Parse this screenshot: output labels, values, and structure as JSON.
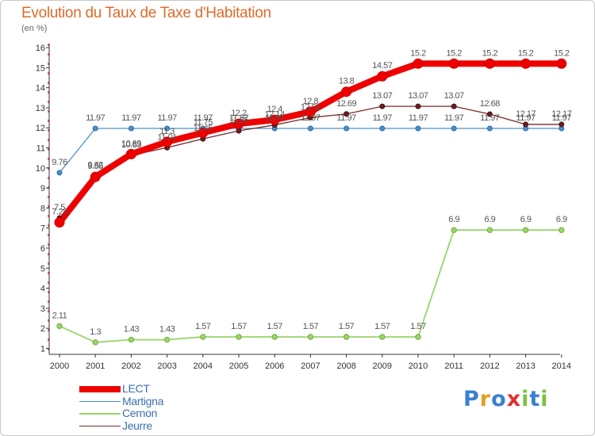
{
  "chart_data": {
    "type": "line",
    "title": "Evolution du Taux de Taxe d'Habitation",
    "subtitle": "(en %)",
    "x": [
      "2000",
      "2001",
      "2002",
      "2003",
      "2004",
      "2005",
      "2006",
      "2007",
      "2008",
      "2009",
      "2010",
      "2011",
      "2012",
      "2013",
      "2014"
    ],
    "yticks": [
      "1",
      "2",
      "3",
      "4",
      "5",
      "6",
      "7",
      "8",
      "9",
      "10",
      "11",
      "12",
      "13",
      "14",
      "15",
      "16"
    ],
    "ylim": [
      0.7,
      16.2
    ],
    "grid": false,
    "legend_position": "bottom-left",
    "series": [
      {
        "name": "LECT",
        "color": "#ee0000",
        "values": [
          7.28,
          9.55,
          10.69,
          11.3,
          11.75,
          12.2,
          12.4,
          12.8,
          13.8,
          14.57,
          15.2,
          15.2,
          15.2,
          15.2,
          15.2
        ],
        "labels": [
          "7.28",
          "9.55",
          "10.69",
          "11.3",
          "11.75",
          "12.2",
          "12.4",
          "12.8",
          "13.8",
          "14.57",
          "15.2",
          "15.2",
          "15.2",
          "15.2",
          "15.2"
        ]
      },
      {
        "name": "Martigna",
        "color": "#4a90cc",
        "values": [
          9.76,
          11.97,
          11.97,
          11.97,
          11.97,
          11.97,
          11.97,
          11.97,
          11.97,
          11.97,
          11.97,
          11.97,
          11.97,
          11.97,
          11.97
        ],
        "labels": [
          "9.76",
          "11.97",
          "11.97",
          "11.97",
          "11.97",
          "11.97",
          "11.97",
          "11.97",
          "11.97",
          "11.97",
          "11.97",
          "11.97",
          "11.97",
          "11.97",
          "11.97"
        ]
      },
      {
        "name": "Cernon",
        "color": "#9ad56a",
        "values": [
          2.11,
          1.3,
          1.43,
          1.43,
          1.57,
          1.57,
          1.57,
          1.57,
          1.57,
          1.57,
          1.57,
          6.9,
          6.9,
          6.9,
          6.9
        ],
        "labels": [
          "2.11",
          "1.3",
          "1.43",
          "1.43",
          "1.57",
          "1.57",
          "1.57",
          "1.57",
          "1.57",
          "1.57",
          "1.57",
          "6.9",
          "6.9",
          "6.9",
          "6.9"
        ]
      },
      {
        "name": "Jeurre",
        "color": "#7a2a2a",
        "values": [
          7.5,
          9.62,
          10.63,
          11.01,
          11.45,
          11.85,
          12.14,
          12.51,
          12.69,
          13.07,
          13.07,
          13.07,
          12.68,
          12.17,
          12.17
        ],
        "labels": [
          "7.5",
          "9.62",
          "10.63",
          "11.01",
          "11.45",
          "11.85",
          "12.14",
          "12.51",
          "12.69",
          "13.07",
          "13.07",
          "13.07",
          "12.68",
          "12.17",
          "12.17"
        ]
      }
    ]
  },
  "logo": {
    "letters": [
      "P",
      "r",
      "o",
      "x",
      "i",
      "t",
      "i"
    ],
    "colors": [
      "#3a7fd0",
      "#e0a020",
      "#3a7fd0",
      "#e03030",
      "#7cc040",
      "#3a7fd0",
      "#7cc040"
    ]
  }
}
